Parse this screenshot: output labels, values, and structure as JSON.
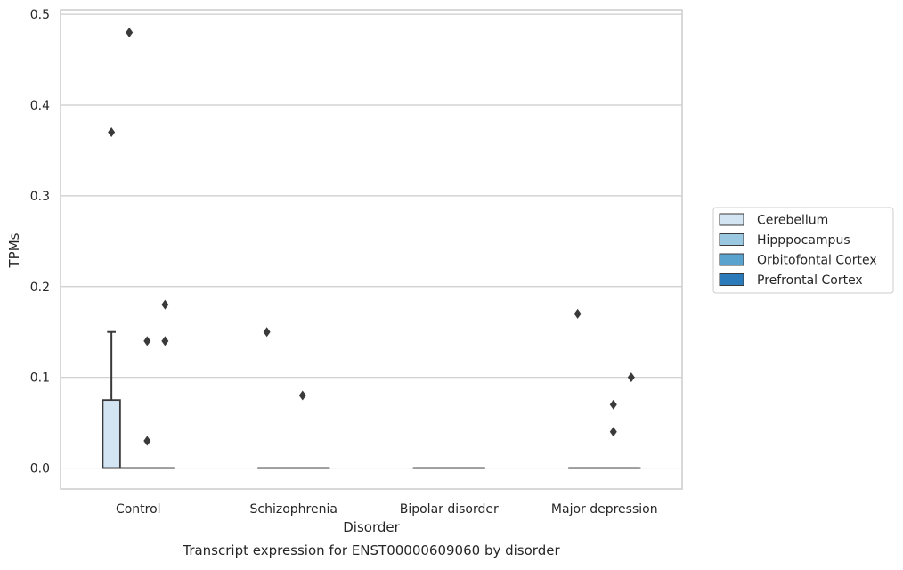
{
  "chart_data": {
    "type": "box",
    "caption": "Transcript expression for ENST00000609060 by disorder",
    "xlabel": "Disorder",
    "ylabel": "TPMs",
    "ylim": [
      -0.023,
      0.505
    ],
    "yticks": [
      0.0,
      0.1,
      0.2,
      0.3,
      0.4,
      0.5
    ],
    "ytick_labels": [
      "0.0",
      "0.1",
      "0.2",
      "0.3",
      "0.4",
      "0.5"
    ],
    "categories": [
      "Control",
      "Schizophrenia",
      "Bipolar disorder",
      "Major depression"
    ],
    "grid": true,
    "legend_position": "right",
    "series": [
      {
        "name": "Cerebellum",
        "color": "#d3e4f3",
        "boxes": [
          {
            "q1": 0.0,
            "median": 0.0,
            "q3": 0.075,
            "whisker_low": 0.0,
            "whisker_high": 0.15,
            "outliers": [
              0.37
            ]
          },
          {
            "q1": 0.0,
            "median": 0.0,
            "q3": 0.0,
            "whisker_low": 0.0,
            "whisker_high": 0.0,
            "outliers": [
              0.15
            ]
          },
          {
            "q1": 0.0,
            "median": 0.0,
            "q3": 0.0,
            "whisker_low": 0.0,
            "whisker_high": 0.0,
            "outliers": []
          },
          {
            "q1": 0.0,
            "median": 0.0,
            "q3": 0.0,
            "whisker_low": 0.0,
            "whisker_high": 0.0,
            "outliers": [
              0.17
            ]
          }
        ]
      },
      {
        "name": "Hipppocampus",
        "color": "#9ac8e0",
        "boxes": [
          {
            "q1": 0.0,
            "median": 0.0,
            "q3": 0.0,
            "whisker_low": 0.0,
            "whisker_high": 0.0,
            "outliers": [
              0.48
            ]
          },
          {
            "q1": 0.0,
            "median": 0.0,
            "q3": 0.0,
            "whisker_low": 0.0,
            "whisker_high": 0.0,
            "outliers": []
          },
          {
            "q1": 0.0,
            "median": 0.0,
            "q3": 0.0,
            "whisker_low": 0.0,
            "whisker_high": 0.0,
            "outliers": []
          },
          {
            "q1": 0.0,
            "median": 0.0,
            "q3": 0.0,
            "whisker_low": 0.0,
            "whisker_high": 0.0,
            "outliers": []
          }
        ]
      },
      {
        "name": "Orbitofontal Cortex",
        "color": "#5ba3cf",
        "boxes": [
          {
            "q1": 0.0,
            "median": 0.0,
            "q3": 0.0,
            "whisker_low": 0.0,
            "whisker_high": 0.0,
            "outliers": [
              0.14,
              0.03
            ]
          },
          {
            "q1": 0.0,
            "median": 0.0,
            "q3": 0.0,
            "whisker_low": 0.0,
            "whisker_high": 0.0,
            "outliers": [
              0.08
            ]
          },
          {
            "q1": 0.0,
            "median": 0.0,
            "q3": 0.0,
            "whisker_low": 0.0,
            "whisker_high": 0.0,
            "outliers": []
          },
          {
            "q1": 0.0,
            "median": 0.0,
            "q3": 0.0,
            "whisker_low": 0.0,
            "whisker_high": 0.0,
            "outliers": [
              0.07,
              0.04
            ]
          }
        ]
      },
      {
        "name": "Prefrontal Cortex",
        "color": "#2b7bba",
        "boxes": [
          {
            "q1": 0.0,
            "median": 0.0,
            "q3": 0.0,
            "whisker_low": 0.0,
            "whisker_high": 0.0,
            "outliers": [
              0.18,
              0.14
            ]
          },
          {
            "q1": 0.0,
            "median": 0.0,
            "q3": 0.0,
            "whisker_low": 0.0,
            "whisker_high": 0.0,
            "outliers": []
          },
          {
            "q1": 0.0,
            "median": 0.0,
            "q3": 0.0,
            "whisker_low": 0.0,
            "whisker_high": 0.0,
            "outliers": []
          },
          {
            "q1": 0.0,
            "median": 0.0,
            "q3": 0.0,
            "whisker_low": 0.0,
            "whisker_high": 0.0,
            "outliers": [
              0.1
            ]
          }
        ]
      }
    ]
  }
}
